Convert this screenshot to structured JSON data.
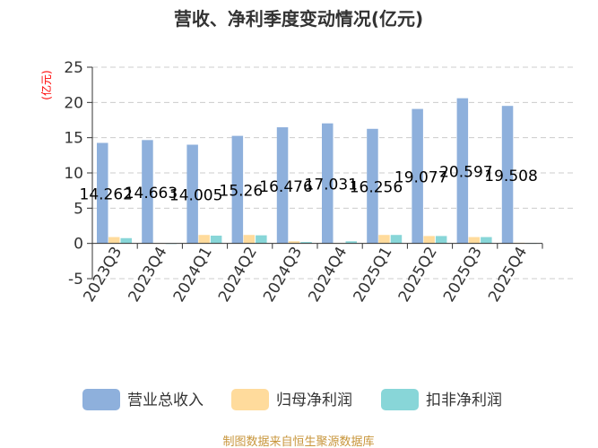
{
  "chart_data": {
    "type": "bar",
    "title": "营收、净利季度变动情况(亿元)",
    "ylabel": "(亿元)",
    "xlabel": "",
    "ylim": [
      -5,
      25
    ],
    "yticks": [
      -5,
      0,
      5,
      10,
      15,
      20,
      25
    ],
    "grid": true,
    "legend_position": "bottom",
    "categories": [
      "2023Q3",
      "2023Q4",
      "2024Q1",
      "2024Q2",
      "2024Q3",
      "2024Q4",
      "2025Q1",
      "2025Q2",
      "2025Q3",
      "2025Q4"
    ],
    "series": [
      {
        "name": "营业总收入",
        "color": "#8eb0dc",
        "values": [
          14.262,
          14.663,
          14.005,
          15.26,
          16.476,
          17.031,
          16.256,
          19.077,
          20.597,
          19.508
        ],
        "labels": [
          "14.262",
          "14.663",
          "14.005",
          "15.26",
          "16.476",
          "17.031",
          "16.256",
          "19.077",
          "20.597",
          "19.508"
        ]
      },
      {
        "name": "归母净利润",
        "color": "#ffdb9c",
        "values": [
          0.9,
          0.05,
          1.2,
          1.2,
          0.3,
          0.05,
          1.2,
          1.05,
          0.9,
          0.1
        ]
      },
      {
        "name": "扣非净利润",
        "color": "#88d6d8",
        "values": [
          0.75,
          0.02,
          1.1,
          1.15,
          0.2,
          0.3,
          1.2,
          1.05,
          0.9,
          0.05
        ]
      }
    ]
  },
  "footer": {
    "source": "制图数据来自恒生聚源数据库",
    "color": "#c8963c"
  },
  "ylabel_color": "#ff0000"
}
